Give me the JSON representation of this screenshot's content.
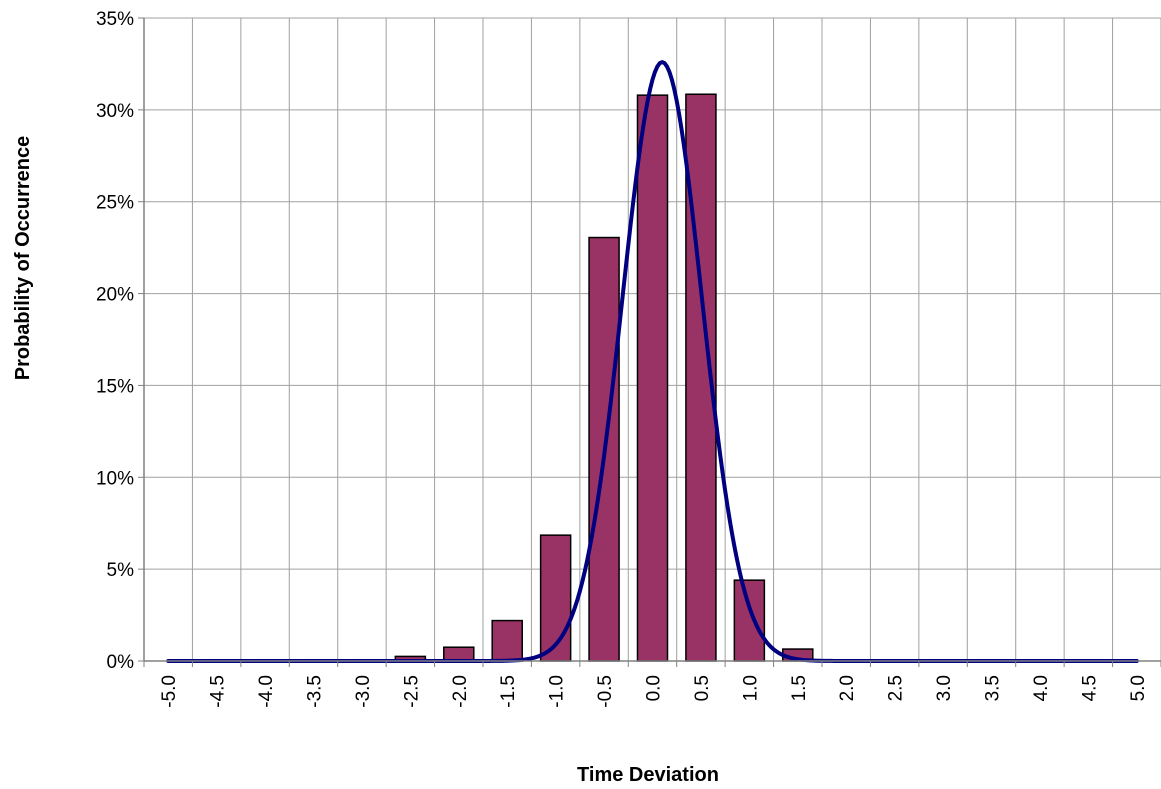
{
  "chart_data": {
    "type": "bar",
    "title": "",
    "xlabel": "Time Deviation",
    "ylabel": "Probability of Occurrence",
    "categories": [
      "-5.0",
      "-4.5",
      "-4.0",
      "-3.5",
      "-3.0",
      "-2.5",
      "-2.0",
      "-1.5",
      "-1.0",
      "-0.5",
      "0.0",
      "0.5",
      "1.0",
      "1.5",
      "2.0",
      "2.5",
      "3.0",
      "3.5",
      "4.0",
      "4.5",
      "5.0"
    ],
    "x_ticks": [
      "-5.0",
      "-4.5",
      "-4.0",
      "-3.5",
      "-3.0",
      "-2.5",
      "-2.0",
      "-1.5",
      "-1.0",
      "-0.5",
      "0.0",
      "0.5",
      "1.0",
      "1.5",
      "2.0",
      "2.5",
      "3.0",
      "3.5",
      "4.0",
      "4.5",
      "5.0"
    ],
    "y_ticks": [
      "0%",
      "5%",
      "10%",
      "15%",
      "20%",
      "25%",
      "30%",
      "35%"
    ],
    "ylim": [
      0,
      35
    ],
    "y_unit": "%",
    "grid": true,
    "legend": "none",
    "series": [
      {
        "type": "bar",
        "values": [
          0,
          0,
          0,
          0,
          0.05,
          0.25,
          0.75,
          2.2,
          6.85,
          23.05,
          30.8,
          30.85,
          4.4,
          0.65,
          0.05,
          0,
          0,
          0,
          0,
          0,
          0
        ],
        "color": "#993366"
      },
      {
        "type": "line",
        "distribution": "normal",
        "mean": 0.1,
        "sd": 0.41,
        "peak": 32.6,
        "x_range": [
          -5.0,
          5.0
        ],
        "color": "#000080"
      }
    ]
  },
  "colors": {
    "bar_fill": "#993366",
    "bar_stroke": "#000000",
    "curve": "#000080",
    "grid": "#a0a0a0",
    "axis": "#808080"
  }
}
